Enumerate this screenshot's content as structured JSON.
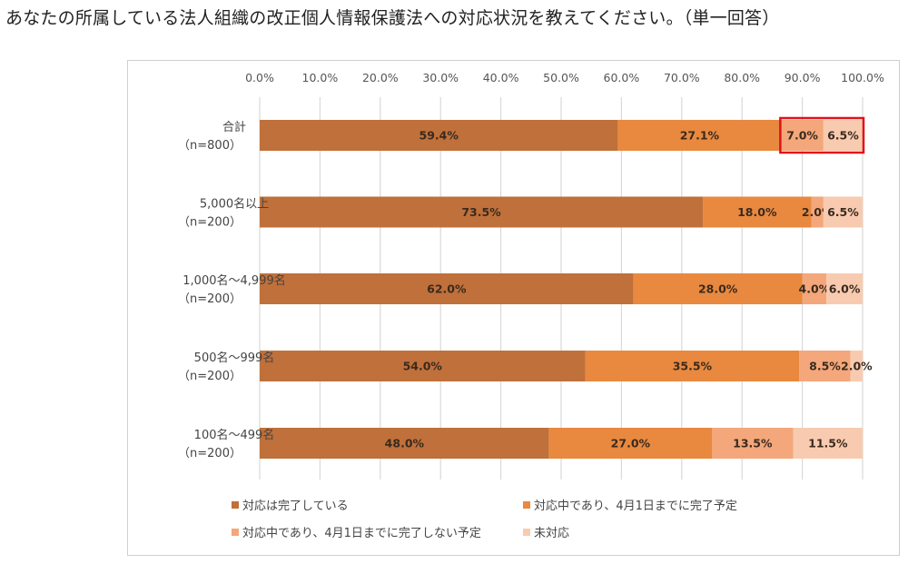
{
  "question": "あなたの所属している法人組織の改正個人情報保護法への対応状況を教えてください。（単一回答）",
  "chart_data": {
    "type": "bar",
    "orientation": "horizontal",
    "stacked": true,
    "title": "",
    "xlabel": "",
    "ylabel": "",
    "xlim": [
      0,
      100
    ],
    "x_ticks": [
      "0.0%",
      "10.0%",
      "20.0%",
      "30.0%",
      "40.0%",
      "50.0%",
      "60.0%",
      "70.0%",
      "80.0%",
      "90.0%",
      "100.0%"
    ],
    "grid": true,
    "legend_position": "bottom",
    "categories": [
      {
        "line1": "合計",
        "line2": "（n=800）"
      },
      {
        "line1": "5,000名以上",
        "line2": "（n=200）"
      },
      {
        "line1": "1,000名～4,999名",
        "line2": "（n=200）"
      },
      {
        "line1": "500名～999名",
        "line2": "（n=200）"
      },
      {
        "line1": "100名～499名",
        "line2": "（n=200）"
      }
    ],
    "series": [
      {
        "name": "対応は完了している",
        "color": "#C0703A",
        "values": [
          59.4,
          73.5,
          62.0,
          54.0,
          48.0
        ],
        "labels": [
          "59.4%",
          "73.5%",
          "62.0%",
          "54.0%",
          "48.0%"
        ]
      },
      {
        "name": "対応中であり、4月1日までに完了予定",
        "color": "#E8893F",
        "values": [
          27.1,
          18.0,
          28.0,
          35.5,
          27.0
        ],
        "labels": [
          "27.1%",
          "18.0%",
          "28.0%",
          "35.5%",
          "27.0%"
        ]
      },
      {
        "name": "対応中であり、4月1日までに完了しない予定",
        "color": "#F3A77A",
        "values": [
          7.0,
          2.0,
          4.0,
          8.5,
          13.5
        ],
        "labels": [
          "7.0%",
          "2.0%",
          "4.0%",
          "8.5%",
          "13.5%"
        ]
      },
      {
        "name": "未対応",
        "color": "#F8CBB0",
        "values": [
          6.5,
          6.5,
          6.0,
          2.0,
          11.5
        ],
        "labels": [
          "6.5%",
          "6.5%",
          "6.0%",
          "2.0%",
          "11.5%"
        ]
      }
    ],
    "highlight": {
      "category_index": 0,
      "series_from": 2,
      "series_to": 3,
      "color": "#E0121B"
    }
  }
}
